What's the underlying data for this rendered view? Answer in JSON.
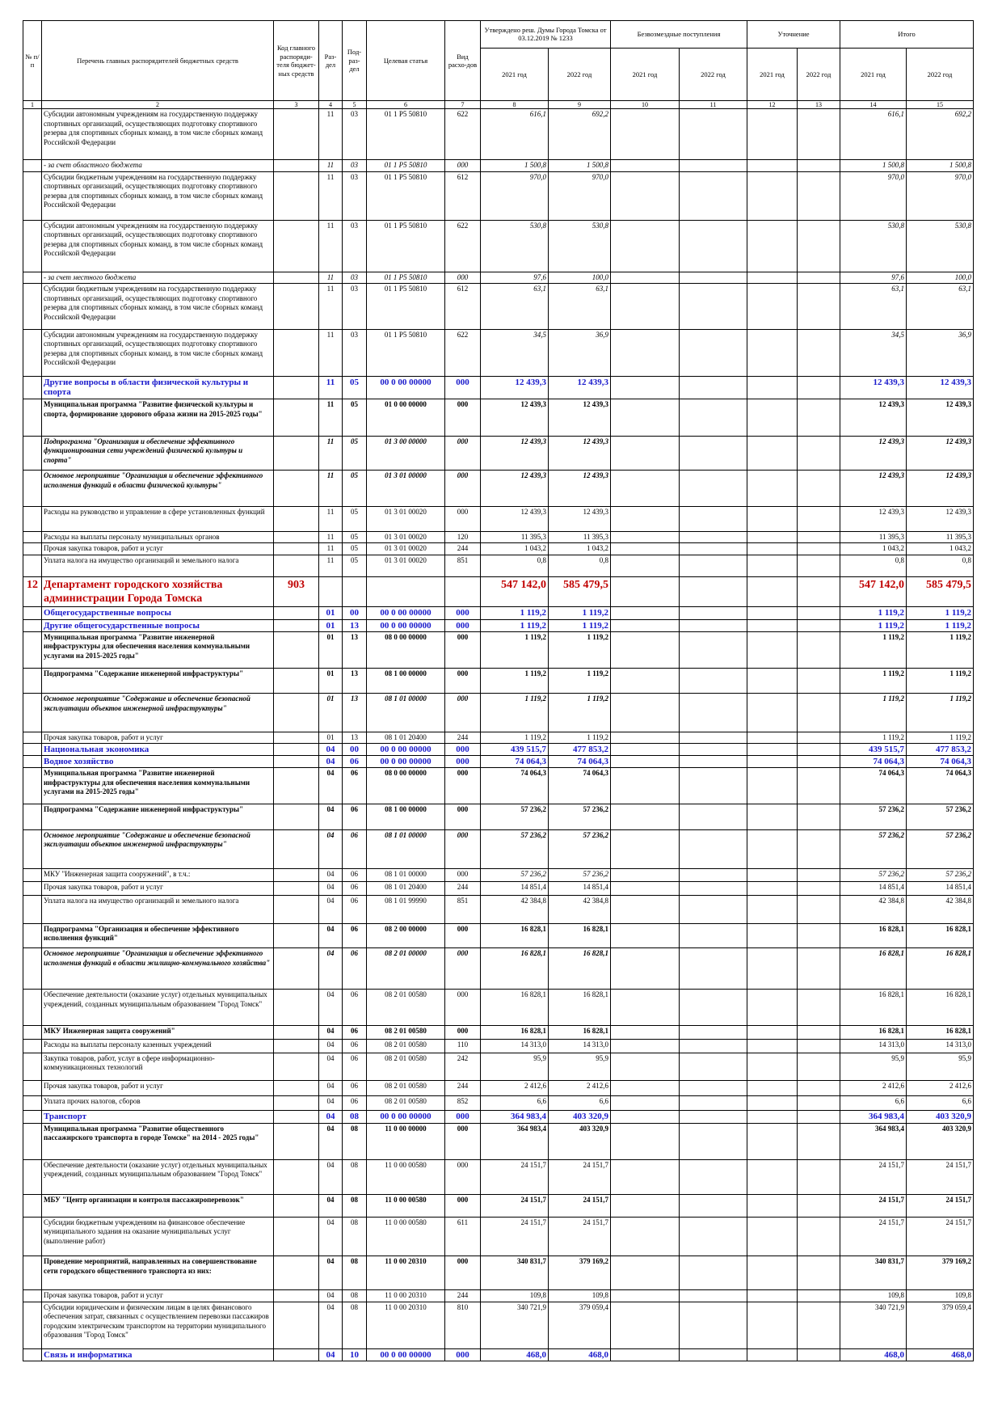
{
  "header": {
    "cells": [
      "№ п/п",
      "Перечень главных распорядителей бюджетных средств",
      "Код главного распоряди-теля бюджет-ных средств",
      "Раз-дел",
      "Под-раз-дел",
      "Целевая статья",
      "Вид расхо-дов"
    ],
    "groups": [
      "Утверждено реш. Думы Города Томска от 03.12.2019 № 1233",
      "Безвозмездные поступления",
      "Уточнение",
      "Итого"
    ],
    "years": [
      "2021 год",
      "2022 год",
      "2021 год",
      "2022 год",
      "2021 год",
      "2022 год",
      "2021 год",
      "2022 год"
    ]
  },
  "column_numbers": [
    1,
    2,
    3,
    4,
    5,
    6,
    7,
    8,
    9,
    10,
    11,
    12,
    13,
    14,
    15
  ],
  "rows": [
    [
      null,
      "Субсидии автономным учреждениям на  государственную поддержку спортивных организаций, осуществляющих подготовку спортивного резерва для спортивных сборных команд, в том числе сборных команд Российской Федерации",
      null,
      "11",
      "03",
      "01 1 P5 50810",
      "622",
      "616,1",
      "692,2",
      null,
      null,
      null,
      null,
      "616,1",
      "692,2"
    ],
    [
      null,
      "- за счет областного бюджета",
      null,
      "11",
      "03",
      "01 1 P5 50810",
      "000",
      "1 500,8",
      "1 500,8",
      null,
      null,
      null,
      null,
      "1 500,8",
      "1 500,8"
    ],
    [
      null,
      "Субсидии бюджетным учреждениям на  государственную поддержку спортивных организаций, осуществляющих подготовку спортивного резерва для спортивных сборных команд, в том числе сборных команд Российской Федерации",
      null,
      "11",
      "03",
      "01 1 P5 50810",
      "612",
      "970,0",
      "970,0",
      null,
      null,
      null,
      null,
      "970,0",
      "970,0"
    ],
    [
      null,
      "Субсидии автономным учреждениям на  государственную поддержку спортивных организаций, осуществляющих подготовку спортивного резерва для спортивных сборных команд, в том числе сборных команд Российской Федерации",
      null,
      "11",
      "03",
      "01 1 P5 50810",
      "622",
      "530,8",
      "530,8",
      null,
      null,
      null,
      null,
      "530,8",
      "530,8"
    ],
    [
      null,
      "- за счет местного бюджета",
      null,
      "11",
      "03",
      "01 1 P5 50810",
      "000",
      "97,6",
      "100,0",
      null,
      null,
      null,
      null,
      "97,6",
      "100,0"
    ],
    [
      null,
      "Субсидии бюджетным учреждениям на  государственную поддержку спортивных организаций, осуществляющих подготовку спортивного резерва для спортивных сборных команд, в том числе сборных команд Российской Федерации",
      null,
      "11",
      "03",
      "01 1 P5 50810",
      "612",
      "63,1",
      "63,1",
      null,
      null,
      null,
      null,
      "63,1",
      "63,1"
    ],
    [
      null,
      "Субсидии автономным учреждениям на  государственную поддержку спортивных организаций, осуществляющих подготовку спортивного резерва для спортивных сборных команд, в том числе сборных команд Российской Федерации",
      null,
      "11",
      "03",
      "01 1 P5 50810",
      "622",
      "34,5",
      "36,9",
      null,
      null,
      null,
      null,
      "34,5",
      "36,9"
    ],
    [
      null,
      "Другие вопросы в области физической культуры и спорта",
      null,
      "11",
      "05",
      "00 0 00 00000",
      "000",
      "12 439,3",
      "12 439,3",
      null,
      null,
      null,
      null,
      "12 439,3",
      "12 439,3"
    ],
    [
      null,
      "Муниципальная программа \"Развитие физической культуры и спорта, формирование здорового образа жизни на 2015-2025 годы\"",
      null,
      "11",
      "05",
      "01 0 00 00000",
      "000",
      "12 439,3",
      "12 439,3",
      null,
      null,
      null,
      null,
      "12 439,3",
      "12 439,3"
    ],
    [
      null,
      "Подпрограмма \"Организация и обеспечение эффективного функционирования сети учреждений физической культуры и спорта\"",
      null,
      "11",
      "05",
      "01 3 00 00000",
      "000",
      "12 439,3",
      "12 439,3",
      null,
      null,
      null,
      null,
      "12 439,3",
      "12 439,3"
    ],
    [
      null,
      "Основное мероприятие \"Организация и обеспечение эффективного исполнения функций в области физической культуры\"",
      null,
      "11",
      "05",
      "01 3 01 00000",
      "000",
      "12 439,3",
      "12 439,3",
      null,
      null,
      null,
      null,
      "12 439,3",
      "12 439,3"
    ],
    [
      null,
      "Расходы на руководство и управление в сфере установленных функций",
      null,
      "11",
      "05",
      "01 3 01 00020",
      "000",
      "12 439,3",
      "12 439,3",
      null,
      null,
      null,
      null,
      "12 439,3",
      "12 439,3"
    ],
    [
      null,
      "Расходы на выплаты персоналу муниципальных органов",
      null,
      "11",
      "05",
      "01 3 01 00020",
      "120",
      "11 395,3",
      "11 395,3",
      null,
      null,
      null,
      null,
      "11 395,3",
      "11 395,3"
    ],
    [
      null,
      "Прочая закупка товаров, работ и услуг",
      null,
      "11",
      "05",
      "01 3 01 00020",
      "244",
      "1 043,2",
      "1 043,2",
      null,
      null,
      null,
      null,
      "1 043,2",
      "1 043,2"
    ],
    [
      null,
      "Уплата налога на имущество организаций и земельного налога",
      null,
      "11",
      "05",
      "01 3 01 00020",
      "851",
      "0,8",
      "0,8",
      null,
      null,
      null,
      null,
      "0,8",
      "0,8"
    ],
    [
      "12",
      "Департамент городского хозяйства администрации Города Томска",
      "903",
      null,
      null,
      null,
      null,
      "547 142,0",
      "585 479,5",
      null,
      null,
      null,
      null,
      "547 142,0",
      "585 479,5"
    ],
    [
      null,
      "Общегосударственные вопросы",
      null,
      "01",
      "00",
      "00 0 00 00000",
      "000",
      "1 119,2",
      "1 119,2",
      null,
      null,
      null,
      null,
      "1 119,2",
      "1 119,2"
    ],
    [
      null,
      "Другие общегосударственные вопросы",
      null,
      "01",
      "13",
      "00 0 00 00000",
      "000",
      "1 119,2",
      "1 119,2",
      null,
      null,
      null,
      null,
      "1 119,2",
      "1 119,2"
    ],
    [
      null,
      "Муниципальная программа \"Развитие инженерной инфраструктуры для обеспечения населения коммунальными услугами на 2015-2025 годы\"",
      null,
      "01",
      "13",
      "08 0 00 00000",
      "000",
      "1 119,2",
      "1 119,2",
      null,
      null,
      null,
      null,
      "1 119,2",
      "1 119,2"
    ],
    [
      null,
      "Подпрограмма \"Содержание инженерной инфраструктуры\"",
      null,
      "01",
      "13",
      "08 1 00 00000",
      "000",
      "1 119,2",
      "1 119,2",
      null,
      null,
      null,
      null,
      "1 119,2",
      "1 119,2"
    ],
    [
      null,
      "Основное мероприятие \"Содержание и обеспечение безопасной эксплуатации объектов инженерной инфраструктуры\"",
      null,
      "01",
      "13",
      "08 1 01 00000",
      "000",
      "1 119,2",
      "1 119,2",
      null,
      null,
      null,
      null,
      "1 119,2",
      "1 119,2"
    ],
    [
      null,
      "Прочая закупка товаров, работ и услуг",
      null,
      "01",
      "13",
      "08 1 01 20400",
      "244",
      "1 119,2",
      "1 119,2",
      null,
      null,
      null,
      null,
      "1 119,2",
      "1 119,2"
    ],
    [
      null,
      "Национальная экономика",
      null,
      "04",
      "00",
      "00 0 00 00000",
      "000",
      "439 515,7",
      "477 853,2",
      null,
      null,
      null,
      null,
      "439 515,7",
      "477 853,2"
    ],
    [
      null,
      "Водное хозяйство",
      null,
      "04",
      "06",
      "00 0 00 00000",
      "000",
      "74 064,3",
      "74 064,3",
      null,
      null,
      null,
      null,
      "74 064,3",
      "74 064,3"
    ],
    [
      null,
      "Муниципальная программа \"Развитие инженерной инфраструктуры для обеспечения населения коммунальными услугами на 2015-2025 годы\"",
      null,
      "04",
      "06",
      "08 0 00 00000",
      "000",
      "74 064,3",
      "74 064,3",
      null,
      null,
      null,
      null,
      "74 064,3",
      "74 064,3"
    ],
    [
      null,
      "Подпрограмма \"Содержание инженерной инфраструктуры\"",
      null,
      "04",
      "06",
      "08 1 00 00000",
      "000",
      "57 236,2",
      "57 236,2",
      null,
      null,
      null,
      null,
      "57 236,2",
      "57 236,2"
    ],
    [
      null,
      "Основное мероприятие \"Содержание и обеспечение безопасной эксплуатации объектов инженерной инфраструктуры\"",
      null,
      "04",
      "06",
      "08 1 01 00000",
      "000",
      "57 236,2",
      "57 236,2",
      null,
      null,
      null,
      null,
      "57 236,2",
      "57 236,2"
    ],
    [
      null,
      "МКУ \"Инженерная защита сооружений\", в т.ч.:",
      null,
      "04",
      "06",
      "08 1 01 00000",
      "000",
      "57 236,2",
      "57 236,2",
      null,
      null,
      null,
      null,
      "57 236,2",
      "57 236,2"
    ],
    [
      null,
      "Прочая закупка товаров, работ и услуг",
      null,
      "04",
      "06",
      "08 1 01 20400",
      "244",
      "14 851,4",
      "14 851,4",
      null,
      null,
      null,
      null,
      "14 851,4",
      "14 851,4"
    ],
    [
      null,
      "Уплата налога на имущество организаций и земельного налога",
      null,
      "04",
      "06",
      "08 1 01 99990",
      "851",
      "42 384,8",
      "42 384,8",
      null,
      null,
      null,
      null,
      "42 384,8",
      "42 384,8"
    ],
    [
      null,
      "Подпрограмма \"Организация и обеспечение эффективного исполнения функций\"",
      null,
      "04",
      "06",
      "08 2 00 00000",
      "000",
      "16 828,1",
      "16 828,1",
      null,
      null,
      null,
      null,
      "16 828,1",
      "16 828,1"
    ],
    [
      null,
      "Основное мероприятие \"Организация и обеспечение эффективного исполнения функций в области жилищно-коммунального хозяйства\"",
      null,
      "04",
      "06",
      "08 2 01 00000",
      "000",
      "16 828,1",
      "16 828,1",
      null,
      null,
      null,
      null,
      "16 828,1",
      "16 828,1"
    ],
    [
      null,
      "Обеспечение деятельности (оказание услуг) отдельных муниципальных учреждений, созданных муниципальным образованием \"Город Томск\"",
      null,
      "04",
      "06",
      "08 2 01 00580",
      "000",
      "16 828,1",
      "16 828,1",
      null,
      null,
      null,
      null,
      "16 828,1",
      "16 828,1"
    ],
    [
      null,
      "МКУ Инженерная защита сооружений\"",
      null,
      "04",
      "06",
      "08 2 01 00580",
      "000",
      "16 828,1",
      "16 828,1",
      null,
      null,
      null,
      null,
      "16 828,1",
      "16 828,1"
    ],
    [
      null,
      "Расходы на выплаты персоналу казенных учреждений",
      null,
      "04",
      "06",
      "08 2 01 00580",
      "110",
      "14 313,0",
      "14 313,0",
      null,
      null,
      null,
      null,
      "14 313,0",
      "14 313,0"
    ],
    [
      null,
      "Закупка товаров, работ, услуг в сфере информационно-коммуникационных технологий",
      null,
      "04",
      "06",
      "08 2 01 00580",
      "242",
      "95,9",
      "95,9",
      null,
      null,
      null,
      null,
      "95,9",
      "95,9"
    ],
    [
      null,
      "Прочая закупка товаров, работ и услуг",
      null,
      "04",
      "06",
      "08 2 01 00580",
      "244",
      "2 412,6",
      "2 412,6",
      null,
      null,
      null,
      null,
      "2 412,6",
      "2 412,6"
    ],
    [
      null,
      "Уплата прочих налогов, сборов",
      null,
      "04",
      "06",
      "08 2 01 00580",
      "852",
      "6,6",
      "6,6",
      null,
      null,
      null,
      null,
      "6,6",
      "6,6"
    ],
    [
      null,
      "Транспорт",
      null,
      "04",
      "08",
      "00 0 00 00000",
      "000",
      "364 983,4",
      "403 320,9",
      null,
      null,
      null,
      null,
      "364 983,4",
      "403 320,9"
    ],
    [
      null,
      "Муниципальная программа \"Развитие общественного пассажирского транспорта в городе Томске\" на 2014 - 2025 годы\"",
      null,
      "04",
      "08",
      "11 0 00 00000",
      "000",
      "364 983,4",
      "403 320,9",
      null,
      null,
      null,
      null,
      "364 983,4",
      "403 320,9"
    ],
    [
      null,
      "Обеспечение деятельности (оказание услуг) отдельных муниципальных учреждений, созданных муниципальным образованием \"Город Томск\"",
      null,
      "04",
      "08",
      "11 0 00 00580",
      "000",
      "24 151,7",
      "24 151,7",
      null,
      null,
      null,
      null,
      "24 151,7",
      "24 151,7"
    ],
    [
      null,
      "МБУ \"Центр организации и контроля пассажироперевозок\"",
      null,
      "04",
      "08",
      "11 0 00 00580",
      "000",
      "24 151,7",
      "24 151,7",
      null,
      null,
      null,
      null,
      "24 151,7",
      "24 151,7"
    ],
    [
      null,
      "Субсидии бюджетным учреждениям на финансовое обеспечение муниципального задания на оказание муниципальных услуг (выполнение работ)",
      null,
      "04",
      "08",
      "11 0 00 00580",
      "611",
      "24 151,7",
      "24 151,7",
      null,
      null,
      null,
      null,
      "24 151,7",
      "24 151,7"
    ],
    [
      null,
      "Проведение мероприятий, направленных на совершенствование сети городского общественного транспорта из них:",
      null,
      "04",
      "08",
      "11 0 00 20310",
      "000",
      "340 831,7",
      "379 169,2",
      null,
      null,
      null,
      null,
      "340 831,7",
      "379 169,2"
    ],
    [
      null,
      "Прочая закупка товаров, работ и услуг",
      null,
      "04",
      "08",
      "11 0 00 20310",
      "244",
      "109,8",
      "109,8",
      null,
      null,
      null,
      null,
      "109,8",
      "109,8"
    ],
    [
      null,
      "Субсидии юридическим и физическим лицам в целях финансового обеспечения затрат, связанных с осуществлением перевозки пассажиров городским электрическим транспортом на территории муниципального образования \"Город Томск\"",
      null,
      "04",
      "08",
      "11 0 00 20310",
      "810",
      "340 721,9",
      "379 059,4",
      null,
      null,
      null,
      null,
      "340 721,9",
      "379 059,4"
    ],
    [
      null,
      "Связь и информатика",
      null,
      "04",
      "10",
      "00 0 00 00000",
      "000",
      "468,0",
      "468,0",
      null,
      null,
      null,
      null,
      "468,0",
      "468,0"
    ]
  ]
}
